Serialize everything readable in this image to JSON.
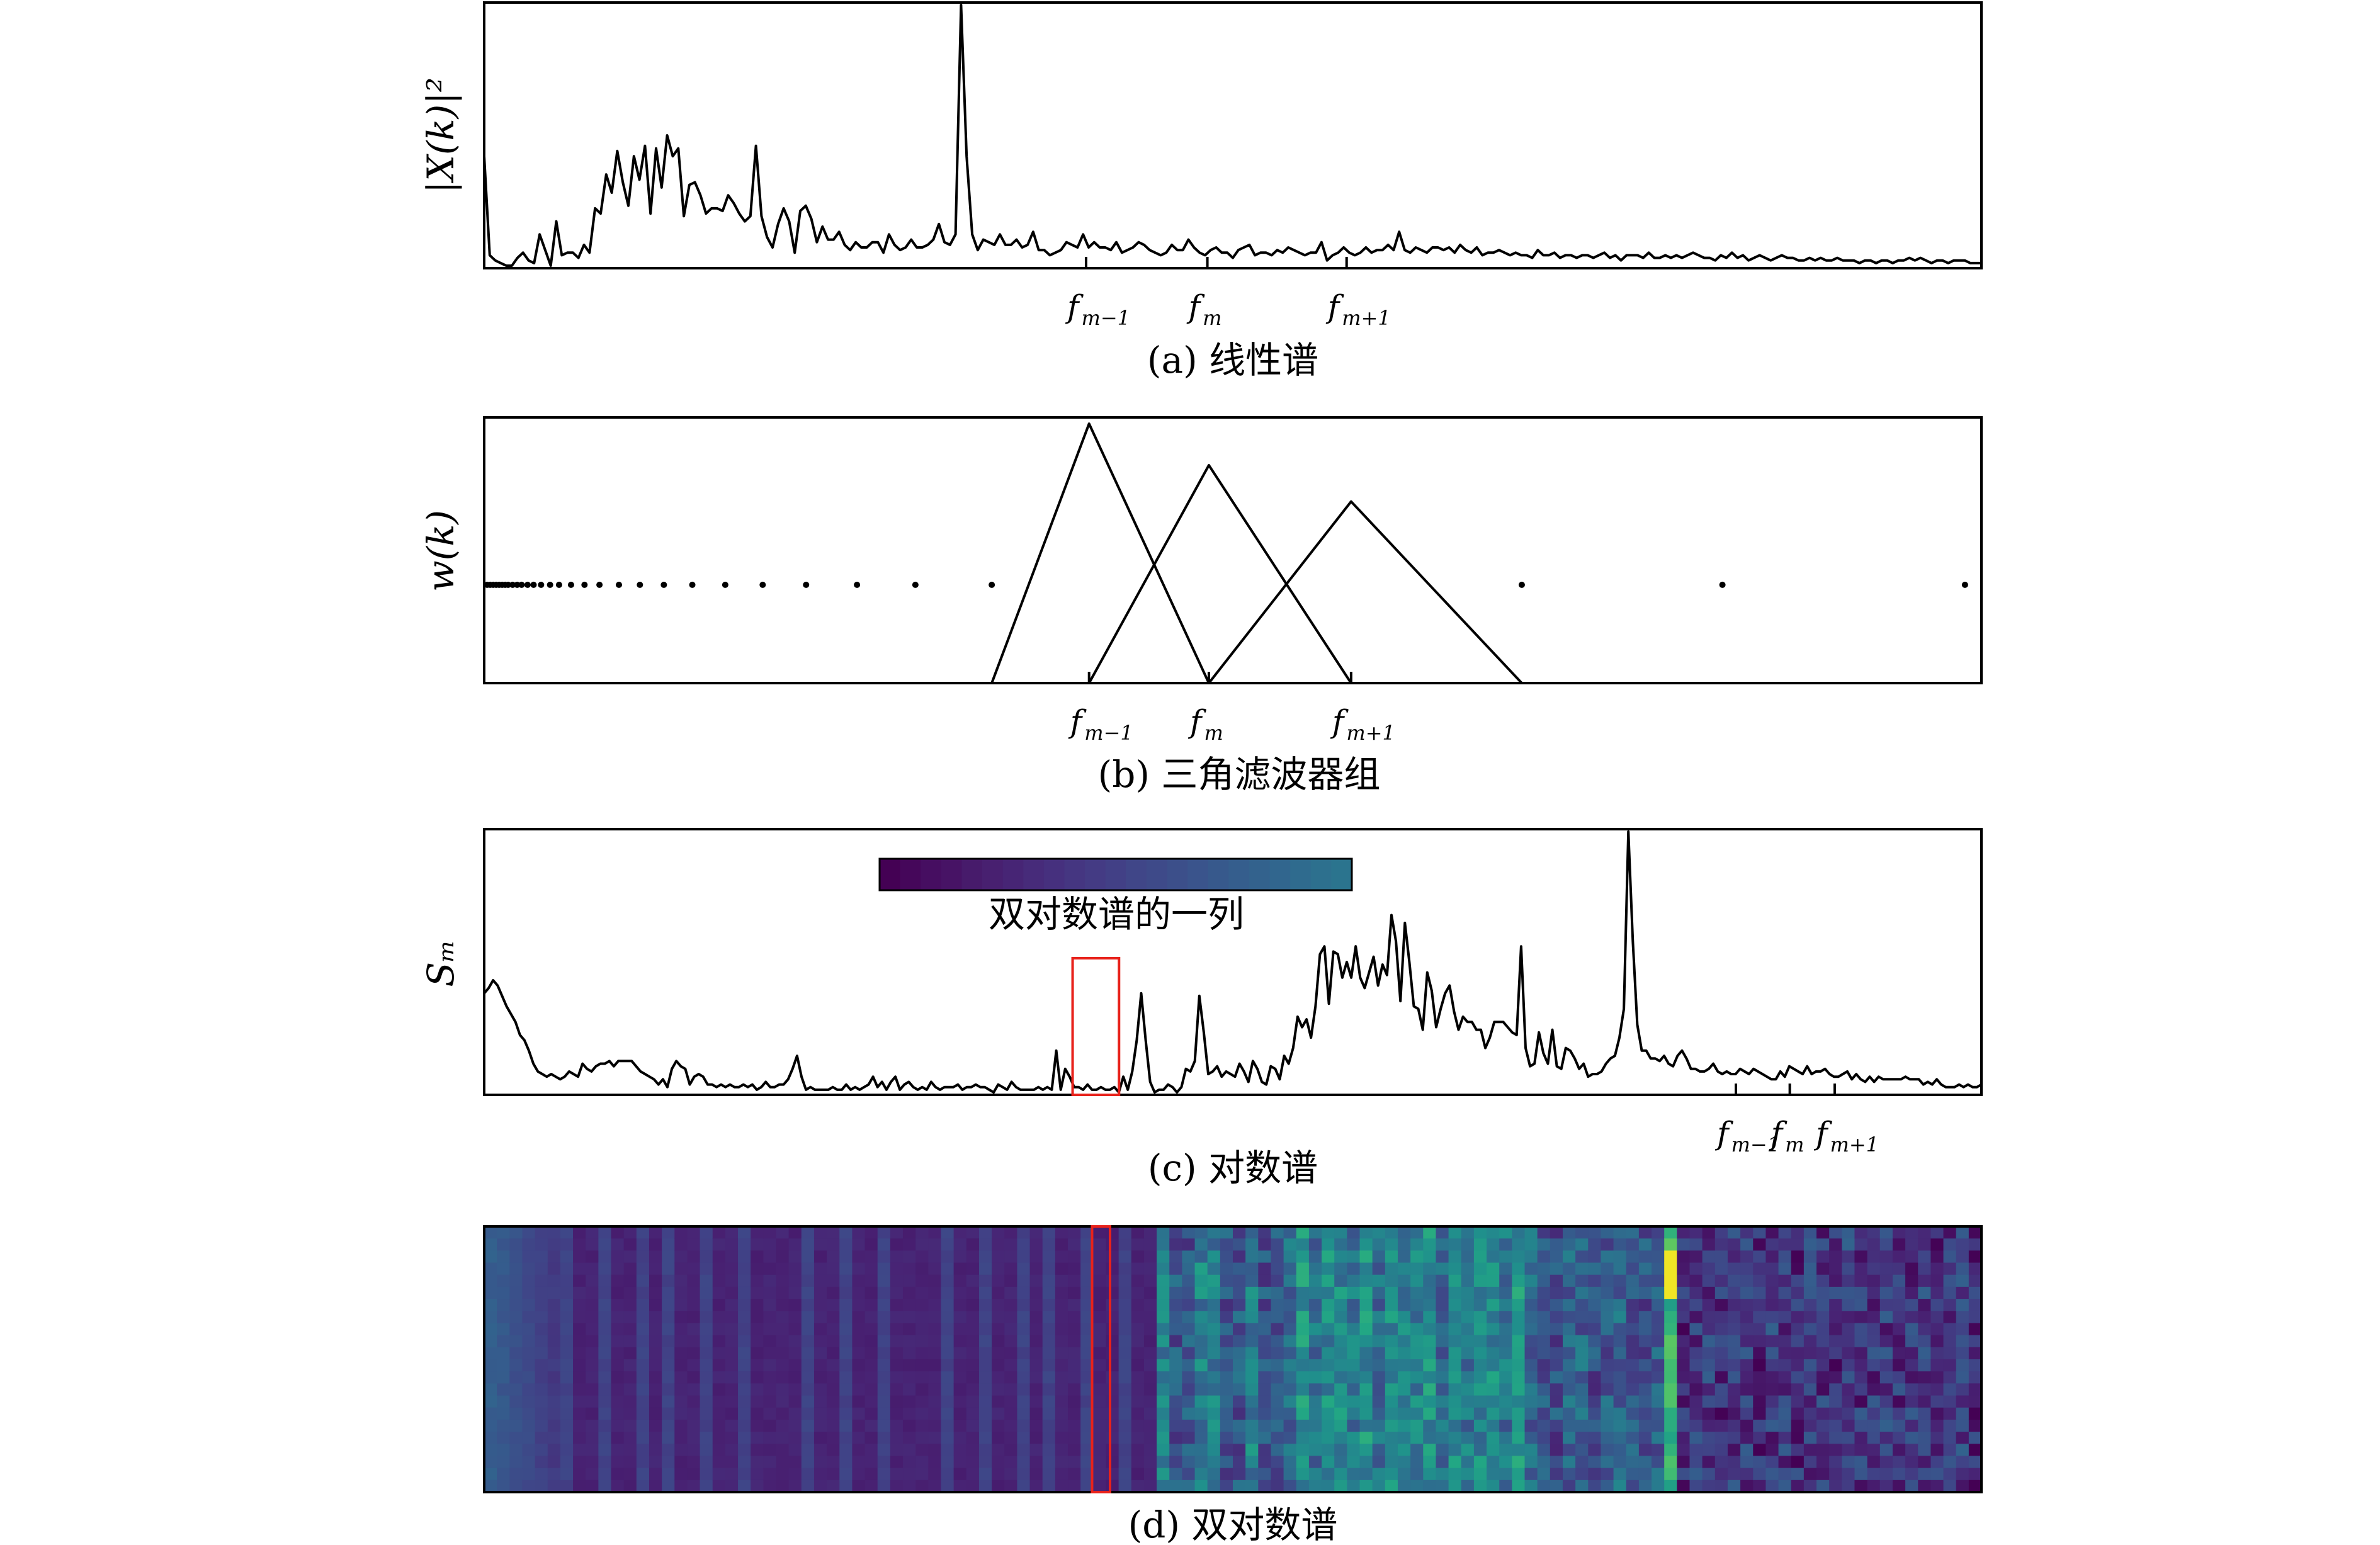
{
  "chart_data": [
    {
      "panel": "a",
      "type": "line",
      "caption": "(a) 线性谱",
      "ylabel": "|X(k)|²",
      "ticks": [
        {
          "base": "f",
          "sub": "m−1"
        },
        {
          "base": "f",
          "sub": "m"
        },
        {
          "base": "f",
          "sub": "m+1"
        }
      ],
      "tick_positions": [
        0.402,
        0.483,
        0.576
      ],
      "ylim": [
        0,
        1
      ],
      "values": [
        0.42,
        0.04,
        0.02,
        0.01,
        0.0,
        0.0,
        0.03,
        0.05,
        0.02,
        0.01,
        0.12,
        0.06,
        0.0,
        0.17,
        0.04,
        0.05,
        0.05,
        0.03,
        0.08,
        0.05,
        0.22,
        0.2,
        0.35,
        0.28,
        0.44,
        0.32,
        0.23,
        0.42,
        0.33,
        0.46,
        0.2,
        0.45,
        0.3,
        0.5,
        0.42,
        0.45,
        0.19,
        0.31,
        0.32,
        0.27,
        0.2,
        0.22,
        0.22,
        0.21,
        0.27,
        0.24,
        0.2,
        0.17,
        0.19,
        0.46,
        0.19,
        0.11,
        0.07,
        0.16,
        0.22,
        0.17,
        0.05,
        0.21,
        0.23,
        0.18,
        0.09,
        0.15,
        0.1,
        0.1,
        0.13,
        0.08,
        0.06,
        0.09,
        0.07,
        0.07,
        0.09,
        0.09,
        0.05,
        0.12,
        0.08,
        0.06,
        0.07,
        0.1,
        0.07,
        0.07,
        0.08,
        0.1,
        0.16,
        0.09,
        0.08,
        0.12,
        1.0,
        0.42,
        0.12,
        0.06,
        0.1,
        0.09,
        0.08,
        0.12,
        0.08,
        0.08,
        0.1,
        0.07,
        0.08,
        0.13,
        0.06,
        0.06,
        0.04,
        0.05,
        0.06,
        0.09,
        0.08,
        0.07,
        0.12,
        0.07,
        0.09,
        0.07,
        0.07,
        0.06,
        0.09,
        0.05,
        0.06,
        0.07,
        0.09,
        0.08,
        0.06,
        0.05,
        0.04,
        0.05,
        0.08,
        0.06,
        0.06,
        0.1,
        0.07,
        0.05,
        0.04,
        0.06,
        0.07,
        0.05,
        0.05,
        0.03,
        0.06,
        0.07,
        0.08,
        0.04,
        0.05,
        0.05,
        0.04,
        0.06,
        0.05,
        0.07,
        0.06,
        0.05,
        0.04,
        0.05,
        0.05,
        0.09,
        0.02,
        0.04,
        0.05,
        0.07,
        0.05,
        0.04,
        0.05,
        0.07,
        0.05,
        0.06,
        0.06,
        0.08,
        0.06,
        0.13,
        0.06,
        0.05,
        0.07,
        0.06,
        0.05,
        0.07,
        0.07,
        0.06,
        0.07,
        0.05,
        0.08,
        0.06,
        0.05,
        0.07,
        0.04,
        0.05,
        0.05,
        0.06,
        0.05,
        0.04,
        0.05,
        0.04,
        0.04,
        0.03,
        0.06,
        0.04,
        0.04,
        0.05,
        0.03,
        0.04,
        0.04,
        0.03,
        0.04,
        0.04,
        0.03,
        0.04,
        0.05,
        0.03,
        0.04,
        0.02,
        0.04,
        0.04,
        0.04,
        0.03,
        0.05,
        0.03,
        0.03,
        0.04,
        0.03,
        0.04,
        0.03,
        0.04,
        0.05,
        0.04,
        0.03,
        0.03,
        0.02,
        0.04,
        0.03,
        0.05,
        0.03,
        0.04,
        0.02,
        0.03,
        0.04,
        0.03,
        0.02,
        0.03,
        0.04,
        0.03,
        0.03,
        0.02,
        0.02,
        0.03,
        0.02,
        0.03,
        0.02,
        0.02,
        0.03,
        0.02,
        0.02,
        0.02,
        0.01,
        0.02,
        0.02,
        0.01,
        0.02,
        0.02,
        0.01,
        0.02,
        0.02,
        0.03,
        0.02,
        0.03,
        0.02,
        0.01,
        0.02,
        0.02,
        0.01,
        0.02,
        0.02,
        0.02,
        0.01,
        0.01,
        0.01
      ]
    },
    {
      "panel": "b",
      "type": "line",
      "caption": "(b) 三角滤波器组",
      "ylabel": "w(k)",
      "ticks": [
        {
          "base": "f",
          "sub": "m−1"
        },
        {
          "base": "f",
          "sub": "m"
        },
        {
          "base": "f",
          "sub": "m+1"
        }
      ],
      "tick_positions": [
        0.404,
        0.484,
        0.579
      ],
      "filters": [
        {
          "start": 0.339,
          "peak": 0.404,
          "end": 0.484,
          "height": 1.0
        },
        {
          "start": 0.404,
          "peak": 0.484,
          "end": 0.579,
          "height": 0.84
        },
        {
          "start": 0.484,
          "peak": 0.579,
          "end": 0.693,
          "height": 0.7
        }
      ],
      "dot_positions": [
        0.002,
        0.004,
        0.006,
        0.008,
        0.01,
        0.012,
        0.014,
        0.016,
        0.019,
        0.022,
        0.025,
        0.029,
        0.033,
        0.038,
        0.044,
        0.05,
        0.058,
        0.067,
        0.077,
        0.09,
        0.104,
        0.12,
        0.139,
        0.161,
        0.186,
        0.215,
        0.249,
        0.288,
        0.339,
        0.693,
        0.827,
        0.989
      ],
      "dot_level": 0.37
    },
    {
      "panel": "c",
      "type": "line",
      "caption": "(c) 对数谱",
      "ylabel": "Sₘ",
      "ticks": [
        {
          "base": "f",
          "sub": "m−1"
        },
        {
          "base": "f",
          "sub": "m"
        },
        {
          "base": "f",
          "sub": "m+1"
        }
      ],
      "tick_positions": [
        0.836,
        0.872,
        0.902
      ],
      "colorbar_label": "双对数谱的一列",
      "colorbar_colors": [
        "#440154",
        "#45075a",
        "#460e61",
        "#471365",
        "#471b6b",
        "#482070",
        "#472575",
        "#472b7a",
        "#46307e",
        "#453681",
        "#443b84",
        "#424086",
        "#404688",
        "#3e4a89",
        "#3c4f8a",
        "#3a548c",
        "#37598c",
        "#355e8d",
        "#33628d",
        "#31668e",
        "#2f6b8e",
        "#2d708e",
        "#2b748e"
      ],
      "values": [
        0.38,
        0.4,
        0.43,
        0.41,
        0.37,
        0.33,
        0.3,
        0.27,
        0.22,
        0.2,
        0.16,
        0.11,
        0.08,
        0.07,
        0.06,
        0.07,
        0.06,
        0.05,
        0.06,
        0.08,
        0.07,
        0.06,
        0.11,
        0.09,
        0.08,
        0.1,
        0.11,
        0.11,
        0.12,
        0.1,
        0.12,
        0.12,
        0.12,
        0.12,
        0.1,
        0.08,
        0.07,
        0.06,
        0.05,
        0.03,
        0.05,
        0.02,
        0.09,
        0.12,
        0.1,
        0.09,
        0.03,
        0.06,
        0.07,
        0.06,
        0.03,
        0.03,
        0.02,
        0.03,
        0.02,
        0.03,
        0.02,
        0.02,
        0.03,
        0.02,
        0.03,
        0.01,
        0.02,
        0.04,
        0.02,
        0.02,
        0.03,
        0.03,
        0.05,
        0.09,
        0.14,
        0.06,
        0.01,
        0.02,
        0.01,
        0.01,
        0.01,
        0.01,
        0.02,
        0.01,
        0.01,
        0.03,
        0.01,
        0.02,
        0.01,
        0.02,
        0.03,
        0.06,
        0.02,
        0.04,
        0.01,
        0.04,
        0.06,
        0.01,
        0.03,
        0.04,
        0.02,
        0.01,
        0.02,
        0.01,
        0.04,
        0.02,
        0.01,
        0.02,
        0.02,
        0.02,
        0.03,
        0.01,
        0.02,
        0.02,
        0.03,
        0.02,
        0.02,
        0.01,
        0.0,
        0.03,
        0.02,
        0.01,
        0.04,
        0.02,
        0.01,
        0.01,
        0.01,
        0.01,
        0.02,
        0.01,
        0.02,
        0.01,
        0.16,
        0.01,
        0.09,
        0.06,
        0.02,
        0.02,
        0.01,
        0.03,
        0.01,
        0.01,
        0.02,
        0.01,
        0.01,
        0.02,
        0.0,
        0.06,
        0.01,
        0.08,
        0.2,
        0.38,
        0.2,
        0.04,
        0.0,
        0.01,
        0.01,
        0.03,
        0.02,
        0.0,
        0.02,
        0.09,
        0.08,
        0.12,
        0.37,
        0.23,
        0.07,
        0.08,
        0.1,
        0.06,
        0.08,
        0.07,
        0.06,
        0.11,
        0.08,
        0.04,
        0.12,
        0.09,
        0.04,
        0.03,
        0.1,
        0.09,
        0.05,
        0.14,
        0.11,
        0.17,
        0.29,
        0.25,
        0.28,
        0.21,
        0.33,
        0.53,
        0.56,
        0.34,
        0.54,
        0.53,
        0.44,
        0.5,
        0.44,
        0.56,
        0.44,
        0.4,
        0.46,
        0.52,
        0.41,
        0.49,
        0.45,
        0.68,
        0.58,
        0.35,
        0.65,
        0.5,
        0.33,
        0.32,
        0.24,
        0.46,
        0.39,
        0.25,
        0.32,
        0.38,
        0.41,
        0.31,
        0.24,
        0.29,
        0.27,
        0.27,
        0.24,
        0.24,
        0.17,
        0.21,
        0.27,
        0.27,
        0.27,
        0.25,
        0.23,
        0.22,
        0.56,
        0.17,
        0.1,
        0.11,
        0.23,
        0.15,
        0.11,
        0.24,
        0.1,
        0.09,
        0.17,
        0.16,
        0.13,
        0.09,
        0.11,
        0.06,
        0.07,
        0.07,
        0.08,
        0.11,
        0.13,
        0.14,
        0.21,
        0.32,
        1.0,
        0.58,
        0.26,
        0.16,
        0.16,
        0.13,
        0.13,
        0.12,
        0.14,
        0.11,
        0.1,
        0.14,
        0.16,
        0.13,
        0.09,
        0.09,
        0.08,
        0.08,
        0.09,
        0.11,
        0.08,
        0.07,
        0.08,
        0.07,
        0.07,
        0.09,
        0.08,
        0.07,
        0.09,
        0.08,
        0.07,
        0.06,
        0.05,
        0.05,
        0.08,
        0.06,
        0.1,
        0.09,
        0.08,
        0.07,
        0.1,
        0.07,
        0.08,
        0.08,
        0.09,
        0.07,
        0.06,
        0.06,
        0.07,
        0.08,
        0.05,
        0.07,
        0.05,
        0.04,
        0.06,
        0.04,
        0.06,
        0.05,
        0.05,
        0.05,
        0.05,
        0.05,
        0.06,
        0.05,
        0.05,
        0.05,
        0.03,
        0.04,
        0.03,
        0.05,
        0.03,
        0.02,
        0.02,
        0.02,
        0.03,
        0.02,
        0.03,
        0.02,
        0.02,
        0.03
      ],
      "highlight_range": [
        0.393,
        0.424
      ]
    },
    {
      "panel": "d",
      "type": "heatmap",
      "caption": "(d) 双对数谱",
      "colormap": "viridis",
      "highlight_range": [
        0.406,
        0.418
      ]
    }
  ]
}
